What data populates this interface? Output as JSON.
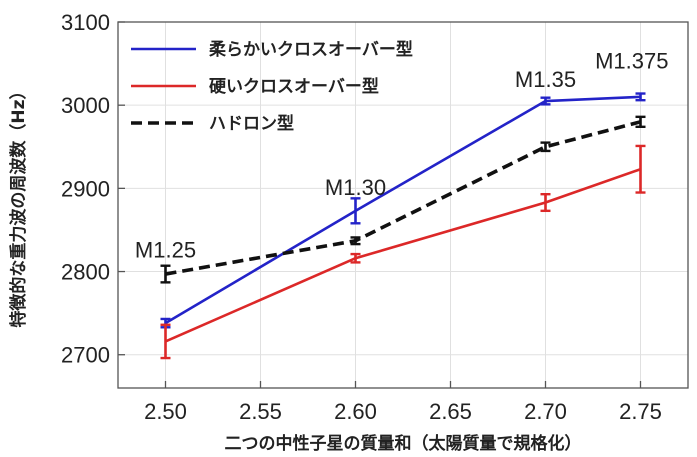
{
  "chart_data": {
    "type": "line",
    "xlabel": "二つの中性子星の質量和（太陽質量で規格化）",
    "ylabel": "特徴的な重力波の周波数（Hz）",
    "xlim": [
      2.475,
      2.775
    ],
    "ylim": [
      2660,
      3100
    ],
    "xticks": [
      "2.50",
      "2.55",
      "2.60",
      "2.65",
      "2.70",
      "2.75"
    ],
    "yticks": [
      "2700",
      "2800",
      "2900",
      "3000",
      "3100"
    ],
    "grid": true,
    "legend_position": "top-left",
    "x": [
      2.5,
      2.6,
      2.7,
      2.75
    ],
    "series": [
      {
        "name": "柔らかいクロスオーバー型",
        "color": "#2323c8",
        "style": "solid",
        "values": [
          2738,
          2873,
          3005,
          3010
        ],
        "errors": [
          5,
          15,
          4,
          4
        ]
      },
      {
        "name": "硬いクロスオーバー型",
        "color": "#dc2828",
        "style": "solid",
        "values": [
          2716,
          2816,
          2883,
          2923
        ],
        "errors": [
          20,
          5,
          10,
          28
        ]
      },
      {
        "name": "ハドロン型",
        "color": "#111111",
        "style": "dashed",
        "values": [
          2797,
          2837,
          2950,
          2980
        ],
        "errors": [
          10,
          4,
          5,
          6
        ]
      }
    ],
    "annotations": [
      {
        "text": "M1.25",
        "x": 2.5,
        "y": 2817
      },
      {
        "text": "M1.30",
        "x": 2.6,
        "y": 2892
      },
      {
        "text": "M1.35",
        "x": 2.7,
        "y": 3022
      },
      {
        "text": "M1.375",
        "x": 2.75,
        "y": 3044
      }
    ]
  }
}
